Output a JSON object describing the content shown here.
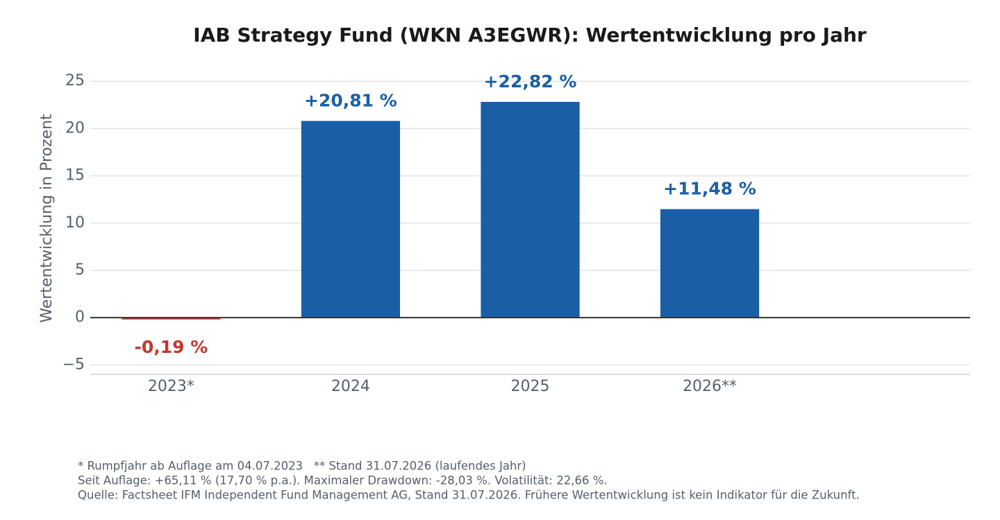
{
  "chart_data": {
    "type": "bar",
    "title": "IAB Strategy Fund (WKN A3EGWR): Wertentwicklung pro Jahr",
    "y_label": "Wertentwicklung in Prozent",
    "categories": [
      "2023*",
      "2024",
      "2025",
      "2026**"
    ],
    "values": [
      -0.19,
      20.81,
      22.82,
      11.48
    ],
    "value_labels": [
      "-0,19 %",
      "+20,81 %",
      "+22,82 %",
      "+11,48 %"
    ],
    "colors": [
      "#c0392b",
      "#1a5fa5",
      "#1a5fa5",
      "#1a5fa5"
    ],
    "ylim": [
      -6,
      26
    ],
    "yticks": [
      {
        "value": -5,
        "label": "−5"
      },
      0,
      5,
      10,
      15,
      20,
      25
    ],
    "grid": true,
    "footnotes": [
      "* Rumpfjahr ab Auflage am 04.07.2023   ** Stand 31.07.2026 (laufendes Jahr)",
      "Seit Auflage: +65,11 % (17,70 % p.a.). Maximaler Drawdown: -28,03 %. Volatilität: 22,66 %.",
      "Quelle: Factsheet IFM Independent Fund Management AG, Stand 31.07.2026. Frühere Wertentwicklung ist kein Indikator für die Zukunft."
    ]
  }
}
